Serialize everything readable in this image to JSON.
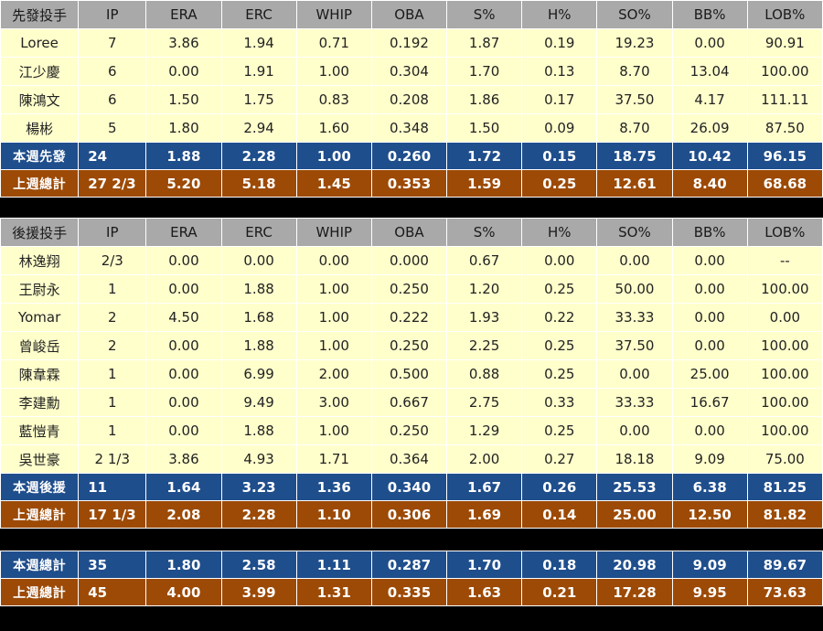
{
  "headers": {
    "starter": [
      "先發投手",
      "IP",
      "ERA",
      "ERC",
      "WHIP",
      "OBA",
      "S%",
      "H%",
      "SO%",
      "BB%",
      "LOB%"
    ],
    "reliever": [
      "後援投手",
      "IP",
      "ERA",
      "ERC",
      "WHIP",
      "OBA",
      "S%",
      "H%",
      "SO%",
      "BB%",
      "LOB%"
    ]
  },
  "starters": [
    [
      "Loree",
      "7",
      "3.86",
      "1.94",
      "0.71",
      "0.192",
      "1.87",
      "0.19",
      "19.23",
      "0.00",
      "90.91"
    ],
    [
      "江少慶",
      "6",
      "0.00",
      "1.91",
      "1.00",
      "0.304",
      "1.70",
      "0.13",
      "8.70",
      "13.04",
      "100.00"
    ],
    [
      "陳鴻文",
      "6",
      "1.50",
      "1.75",
      "0.83",
      "0.208",
      "1.86",
      "0.17",
      "37.50",
      "4.17",
      "111.11"
    ],
    [
      "楊彬",
      "5",
      "1.80",
      "2.94",
      "1.60",
      "0.348",
      "1.50",
      "0.09",
      "8.70",
      "26.09",
      "87.50"
    ]
  ],
  "starter_week": [
    "本週先發",
    "24",
    "1.88",
    "2.28",
    "1.00",
    "0.260",
    "1.72",
    "0.15",
    "18.75",
    "10.42",
    "96.15"
  ],
  "starter_last": [
    "上週總計",
    "27 2/3",
    "5.20",
    "5.18",
    "1.45",
    "0.353",
    "1.59",
    "0.25",
    "12.61",
    "8.40",
    "68.68"
  ],
  "relievers": [
    [
      "林逸翔",
      "2/3",
      "0.00",
      "0.00",
      "0.00",
      "0.000",
      "0.67",
      "0.00",
      "0.00",
      "0.00",
      "--"
    ],
    [
      "王尉永",
      "1",
      "0.00",
      "1.88",
      "1.00",
      "0.250",
      "1.20",
      "0.25",
      "50.00",
      "0.00",
      "100.00"
    ],
    [
      "Yomar",
      "2",
      "4.50",
      "1.68",
      "1.00",
      "0.222",
      "1.93",
      "0.22",
      "33.33",
      "0.00",
      "0.00"
    ],
    [
      "曾峻岳",
      "2",
      "0.00",
      "1.88",
      "1.00",
      "0.250",
      "2.25",
      "0.25",
      "37.50",
      "0.00",
      "100.00"
    ],
    [
      "陳韋霖",
      "1",
      "0.00",
      "6.99",
      "2.00",
      "0.500",
      "0.88",
      "0.25",
      "0.00",
      "25.00",
      "100.00"
    ],
    [
      "李建勳",
      "1",
      "0.00",
      "9.49",
      "3.00",
      "0.667",
      "2.75",
      "0.33",
      "33.33",
      "16.67",
      "100.00"
    ],
    [
      "藍愷青",
      "1",
      "0.00",
      "1.88",
      "1.00",
      "0.250",
      "1.29",
      "0.25",
      "0.00",
      "0.00",
      "100.00"
    ],
    [
      "吳世豪",
      "2 1/3",
      "3.86",
      "4.93",
      "1.71",
      "0.364",
      "2.00",
      "0.27",
      "18.18",
      "9.09",
      "75.00"
    ]
  ],
  "reliever_week": [
    "本週後援",
    "11",
    "1.64",
    "3.23",
    "1.36",
    "0.340",
    "1.67",
    "0.26",
    "25.53",
    "6.38",
    "81.25"
  ],
  "reliever_last": [
    "上週總計",
    "17 1/3",
    "2.08",
    "2.28",
    "1.10",
    "0.306",
    "1.69",
    "0.14",
    "25.00",
    "12.50",
    "81.82"
  ],
  "total_week": [
    "本週總計",
    "35",
    "1.80",
    "2.58",
    "1.11",
    "0.287",
    "1.70",
    "0.18",
    "20.98",
    "9.09",
    "89.67"
  ],
  "total_last": [
    "上週總計",
    "45",
    "4.00",
    "3.99",
    "1.31",
    "0.335",
    "1.63",
    "0.21",
    "17.28",
    "9.95",
    "73.63"
  ],
  "colors": {
    "header_bg": "#a9a9a9",
    "row_bg": "#ffffcc",
    "week_bg": "#1f4e8c",
    "last_bg": "#9c4a06",
    "gap_bg": "#000000"
  }
}
